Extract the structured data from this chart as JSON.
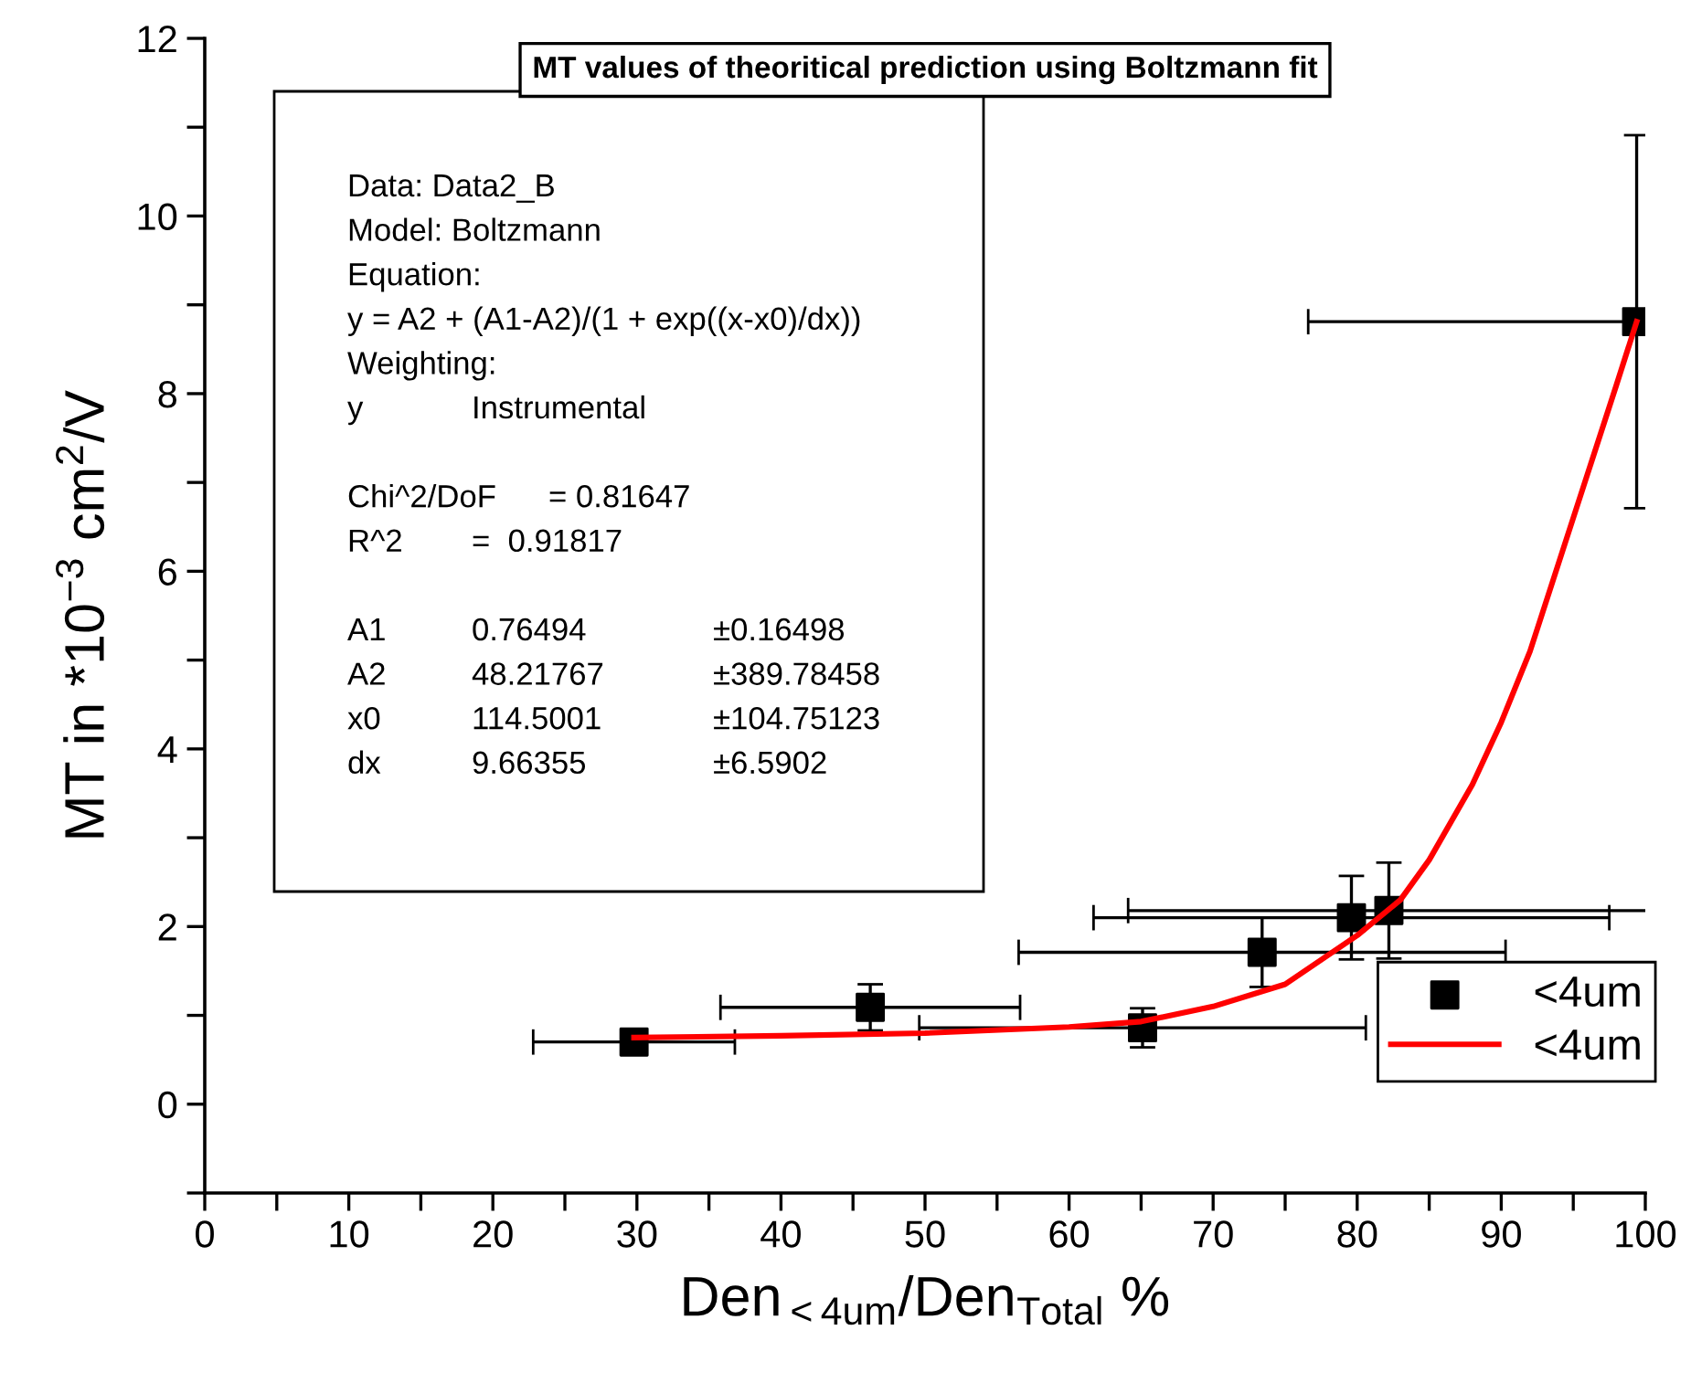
{
  "chart_data": {
    "type": "scatter",
    "title": "MT values of theoritical prediction using Boltzmann fit",
    "xlabel": "Den$_{<4um}$/Den$_{Total}$ %",
    "ylabel": "MT in *10$^{−3}$ cm$^{2}$/V",
    "xlim": [
      0,
      100
    ],
    "ylim": [
      -1,
      12
    ],
    "xticks": [
      0,
      {
        "value": 5,
        "label": null
      },
      10,
      {
        "value": 15,
        "label": null
      },
      20,
      {
        "value": 25,
        "label": null
      },
      30,
      {
        "value": 35,
        "label": null
      },
      40,
      {
        "value": 45,
        "label": null
      },
      50,
      {
        "value": 55,
        "label": null
      },
      60,
      {
        "value": 65,
        "label": null
      },
      70,
      {
        "value": 75,
        "label": null
      },
      80,
      {
        "value": 85,
        "label": null
      },
      90,
      {
        "value": 95,
        "label": null
      },
      100
    ],
    "yticks": [
      {
        "value": -1,
        "label": null
      },
      0,
      {
        "value": 1,
        "label": null
      },
      2,
      {
        "value": 3,
        "label": null
      },
      4,
      {
        "value": 5,
        "label": null
      },
      6,
      {
        "value": 7,
        "label": null
      },
      8,
      {
        "value": 9,
        "label": null
      },
      10,
      {
        "value": 11,
        "label": null
      },
      12
    ],
    "grid": false,
    "legend": "bottom right",
    "series": [
      {
        "name": "<4um",
        "marker": "square",
        "color": "#000000",
        "x": [
          29.8,
          46.2,
          65.1,
          73.4,
          79.6,
          82.2,
          99.4
        ],
        "values": [
          0.7,
          1.09,
          0.86,
          1.71,
          2.1,
          2.18,
          8.81
        ],
        "errors": [
          0.12,
          0.26,
          0.22,
          0.39,
          0.47,
          0.54,
          2.1
        ],
        "xerrors": [
          7,
          10.4,
          15.5,
          16.9,
          17.9,
          18.1,
          [
            76.6,
            100
          ]
        ]
      },
      {
        "name": "<4um",
        "type": "line",
        "marker": "none",
        "line_style": "solid",
        "color": "#ff0000",
        "x": [
          29.8,
          40,
          50,
          60,
          65,
          70,
          75,
          80,
          83,
          85,
          88,
          90,
          92,
          94,
          96,
          98,
          99.4
        ],
        "values": [
          0.75,
          0.77,
          0.8,
          0.87,
          0.93,
          1.1,
          1.35,
          1.9,
          2.3,
          2.75,
          3.6,
          4.3,
          5.1,
          6.1,
          7.1,
          8.1,
          8.81
        ]
      }
    ],
    "annotations": [
      "Data: Data2_B",
      "Model: Boltzmann",
      "Equation:",
      "y = A2 + (A1-A2)/(1 + exp((x-x0)/dx))",
      "Weighting:",
      "y          Instrumental",
      "Chi^2/DoF        = 0.81647",
      "R^2     =  0.91817",
      "A1          0.76494              ±0.16498",
      "A2          48.21767            ±389.78458",
      "x0          114.5001            ±104.75123",
      "dx          9.66355              ±6.5902"
    ]
  }
}
